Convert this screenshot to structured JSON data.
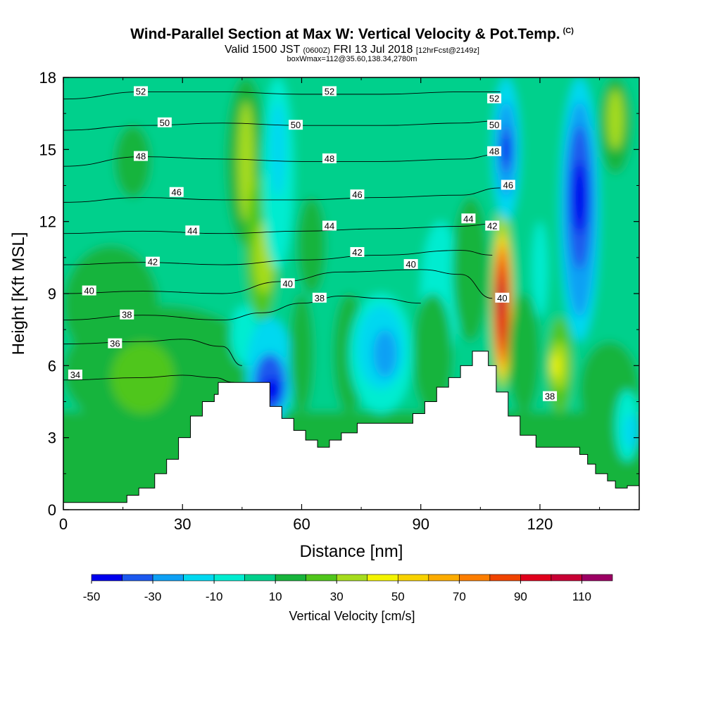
{
  "title": {
    "main": "Wind-Parallel Section at Max W: Vertical Velocity & Pot.Temp.",
    "copyright": "(C)",
    "valid_prefix": "Valid 1500 JST",
    "valid_utc": "(0600Z)",
    "valid_date": "FRI 13 Jul 2018",
    "forecast": "[12hrFcst@2149z]",
    "box": "boxWmax=112@35.60,138.34,2780m"
  },
  "colors": {
    "-50": "#0000ee",
    "-40": "#1c58ee",
    "-30": "#0ea0f4",
    "-20": "#00d8f0",
    "-10": "#00ecd0",
    "0": "#00d08c",
    "10": "#18b43c",
    "20": "#50c61c",
    "30": "#a6dc1e",
    "40": "#f4f400",
    "50": "#f8d200",
    "60": "#fcac00",
    "70": "#fc7e00",
    "80": "#f04400",
    "90": "#e0001c",
    "100": "#c80034",
    "110": "#9c0064",
    "120": "#64107c"
  },
  "chart_data": {
    "type": "heatmap",
    "xlabel": "Distance [nm]",
    "ylabel": "Height [Kft MSL]",
    "xlim": [
      0,
      145
    ],
    "ylim": [
      0,
      18
    ],
    "xticks": [
      0,
      30,
      60,
      90,
      120
    ],
    "yticks": [
      0,
      3,
      6,
      9,
      12,
      15,
      18
    ],
    "colorbar": {
      "title": "Vertical Velocity [cm/s]",
      "bounds": [
        -50,
        -40,
        -30,
        -20,
        -10,
        0,
        10,
        20,
        30,
        40,
        50,
        60,
        70,
        80,
        90,
        100,
        110,
        120
      ],
      "tick_values": [
        -50,
        -30,
        -10,
        10,
        30,
        50,
        70,
        90,
        110
      ],
      "tick_labels": [
        "-50",
        "-30",
        "-10",
        "10",
        "30",
        "50",
        "70",
        "90",
        "110"
      ]
    },
    "terrain": {
      "x": [
        0,
        16,
        16,
        19,
        19,
        23,
        23,
        26,
        26,
        29,
        29,
        32,
        32,
        35,
        35,
        38,
        38,
        39,
        39,
        42,
        42,
        52,
        52,
        55,
        55,
        58,
        58,
        61,
        61,
        64,
        64,
        67,
        67,
        70,
        70,
        74,
        74,
        78,
        78,
        88,
        88,
        91,
        91,
        94,
        94,
        97,
        97,
        100,
        100,
        103,
        103,
        107,
        107,
        109,
        109,
        112,
        112,
        115,
        115,
        119,
        119,
        130,
        130,
        132,
        132,
        134,
        134,
        137,
        137,
        139,
        139,
        142,
        142,
        145
      ],
      "h": [
        0.3,
        0.3,
        0.6,
        0.6,
        0.9,
        0.9,
        1.5,
        1.5,
        2.1,
        2.1,
        3.0,
        3.0,
        3.9,
        3.9,
        4.5,
        4.5,
        4.8,
        4.8,
        5.3,
        5.3,
        5.3,
        5.3,
        4.3,
        4.3,
        3.8,
        3.8,
        3.3,
        3.3,
        2.9,
        2.9,
        2.6,
        2.6,
        2.9,
        2.9,
        3.2,
        3.2,
        3.6,
        3.6,
        3.6,
        3.6,
        4.0,
        4.0,
        4.5,
        4.5,
        5.1,
        5.1,
        5.5,
        5.5,
        6.0,
        6.0,
        6.6,
        6.6,
        6.0,
        6.0,
        4.9,
        4.9,
        3.9,
        3.9,
        3.1,
        3.1,
        2.6,
        2.6,
        2.3,
        2.3,
        1.9,
        1.9,
        1.5,
        1.5,
        1.2,
        1.2,
        0.9,
        0.9,
        1.0,
        1.0
      ]
    },
    "cells": [
      {
        "x": [
          0,
          145
        ],
        "y": [
          0,
          18
        ],
        "w": 0
      },
      {
        "x": [
          0,
          145
        ],
        "y": [
          0,
          3.5
        ],
        "w": 10
      },
      {
        "x": [
          0,
          50
        ],
        "y": [
          3,
          8.5
        ],
        "w": 10
      },
      {
        "x": [
          0,
          24
        ],
        "y": [
          6,
          11
        ],
        "w": 10
      },
      {
        "x": [
          13,
          22
        ],
        "y": [
          13,
          16
        ],
        "w": 10
      },
      {
        "x": [
          12,
          28
        ],
        "y": [
          4,
          7
        ],
        "w": 20
      },
      {
        "x": [
          38,
          52
        ],
        "y": [
          5,
          7
        ],
        "w": 10
      },
      {
        "x": [
          42,
          49
        ],
        "y": [
          6,
          8.5
        ],
        "w": -10
      },
      {
        "x": [
          46,
          58
        ],
        "y": [
          3.5,
          8
        ],
        "w": -20
      },
      {
        "x": [
          48,
          56
        ],
        "y": [
          4,
          6.5
        ],
        "w": -40
      },
      {
        "x": [
          50,
          55
        ],
        "y": [
          4.5,
          5.5
        ],
        "w": -50
      },
      {
        "x": [
          41,
          51
        ],
        "y": [
          11,
          18
        ],
        "w": 10
      },
      {
        "x": [
          44,
          48
        ],
        "y": [
          12,
          17
        ],
        "w": 30
      },
      {
        "x": [
          46,
          54
        ],
        "y": [
          8,
          14
        ],
        "w": 20
      },
      {
        "x": [
          48,
          53
        ],
        "y": [
          9,
          12
        ],
        "w": 30
      },
      {
        "x": [
          50,
          58
        ],
        "y": [
          10,
          18
        ],
        "w": -10
      },
      {
        "x": [
          52,
          56
        ],
        "y": [
          13,
          17
        ],
        "w": -20
      },
      {
        "x": [
          57,
          63
        ],
        "y": [
          4,
          9
        ],
        "w": 10
      },
      {
        "x": [
          59,
          66
        ],
        "y": [
          9,
          13
        ],
        "w": 10
      },
      {
        "x": [
          68,
          76
        ],
        "y": [
          4,
          9
        ],
        "w": 10
      },
      {
        "x": [
          72,
          88
        ],
        "y": [
          4,
          9
        ],
        "w": -10
      },
      {
        "x": [
          74,
          86
        ],
        "y": [
          5,
          8.5
        ],
        "w": -20
      },
      {
        "x": [
          78,
          84
        ],
        "y": [
          5.5,
          7.5
        ],
        "w": -30
      },
      {
        "x": [
          90,
          100
        ],
        "y": [
          6,
          12
        ],
        "w": -10
      },
      {
        "x": [
          88,
          98
        ],
        "y": [
          4,
          9
        ],
        "w": 10
      },
      {
        "x": [
          98,
          107
        ],
        "y": [
          7,
          13
        ],
        "w": 10
      },
      {
        "x": [
          108,
          113
        ],
        "y": [
          5,
          12.5
        ],
        "w": 30
      },
      {
        "x": [
          108,
          113
        ],
        "y": [
          5.5,
          11.5
        ],
        "w": 50
      },
      {
        "x": [
          108.5,
          112.5
        ],
        "y": [
          6,
          11
        ],
        "w": 70
      },
      {
        "x": [
          108.5,
          112
        ],
        "y": [
          6.5,
          10.5
        ],
        "w": 80
      },
      {
        "x": [
          109,
          111.5
        ],
        "y": [
          7,
          10
        ],
        "w": 90
      },
      {
        "x": [
          109,
          111
        ],
        "y": [
          8,
          9.5
        ],
        "w": 100
      },
      {
        "x": [
          108,
          115
        ],
        "y": [
          12,
          18
        ],
        "w": -20
      },
      {
        "x": [
          109,
          114
        ],
        "y": [
          13,
          17
        ],
        "w": -30
      },
      {
        "x": [
          110,
          113
        ],
        "y": [
          14,
          16
        ],
        "w": -40
      },
      {
        "x": [
          110.5,
          112.5
        ],
        "y": [
          14.5,
          15.5
        ],
        "w": -50
      },
      {
        "x": [
          112,
          120
        ],
        "y": [
          4,
          9
        ],
        "w": 10
      },
      {
        "x": [
          118,
          122
        ],
        "y": [
          8,
          12
        ],
        "w": -10
      },
      {
        "x": [
          122,
          128
        ],
        "y": [
          4,
          8
        ],
        "w": 20
      },
      {
        "x": [
          122.5,
          127
        ],
        "y": [
          5,
          7
        ],
        "w": 30
      },
      {
        "x": [
          123,
          125
        ],
        "y": [
          5.5,
          6.5
        ],
        "w": 40
      },
      {
        "x": [
          125,
          135
        ],
        "y": [
          7,
          18
        ],
        "w": -20
      },
      {
        "x": [
          126,
          134
        ],
        "y": [
          8,
          17
        ],
        "w": -30
      },
      {
        "x": [
          127,
          133
        ],
        "y": [
          10,
          16
        ],
        "w": -40
      },
      {
        "x": [
          128,
          132
        ],
        "y": [
          11.5,
          14.5
        ],
        "w": -50
      },
      {
        "x": [
          135,
          143
        ],
        "y": [
          14,
          18
        ],
        "w": 10
      },
      {
        "x": [
          137,
          141
        ],
        "y": [
          15,
          17.5
        ],
        "w": 30
      },
      {
        "x": [
          130,
          145
        ],
        "y": [
          3,
          7
        ],
        "w": 10
      },
      {
        "x": [
          139,
          145
        ],
        "y": [
          2,
          5
        ],
        "w": -10
      },
      {
        "x": [
          141,
          145
        ],
        "y": [
          2.5,
          4
        ],
        "w": -20
      }
    ],
    "isentropes": [
      {
        "value": 34,
        "x": [
          0,
          20,
          30,
          38,
          43
        ],
        "y": [
          5.4,
          5.5,
          5.6,
          5.5,
          5.3
        ]
      },
      {
        "value": 36,
        "x": [
          0,
          20,
          30,
          40,
          45
        ],
        "y": [
          6.9,
          7.0,
          7.1,
          6.8,
          6.0
        ]
      },
      {
        "value": 38,
        "x": [
          0,
          20,
          40,
          50,
          60,
          70,
          80,
          90
        ],
        "y": [
          7.9,
          8.1,
          7.9,
          8.2,
          8.6,
          8.9,
          8.8,
          8.6
        ]
      },
      {
        "value": 40,
        "x": [
          0,
          20,
          40,
          55,
          70,
          90,
          100,
          108
        ],
        "y": [
          9.0,
          9.1,
          9.0,
          9.5,
          9.9,
          10.0,
          9.8,
          8.8
        ]
      },
      {
        "value": 42,
        "x": [
          0,
          20,
          40,
          60,
          80,
          100,
          108
        ],
        "y": [
          10.2,
          10.3,
          10.2,
          10.4,
          10.6,
          10.8,
          10.6
        ]
      },
      {
        "value": 44,
        "x": [
          0,
          20,
          40,
          60,
          80,
          100,
          108
        ],
        "y": [
          11.5,
          11.6,
          11.5,
          11.6,
          11.7,
          11.8,
          11.9
        ]
      },
      {
        "value": 46,
        "x": [
          0,
          20,
          40,
          60,
          80,
          100,
          110
        ],
        "y": [
          12.8,
          13.0,
          12.9,
          12.9,
          13.0,
          13.1,
          13.4
        ]
      },
      {
        "value": 48,
        "x": [
          0,
          20,
          40,
          60,
          80,
          100,
          110
        ],
        "y": [
          14.3,
          14.7,
          14.6,
          14.5,
          14.5,
          14.6,
          14.8
        ]
      },
      {
        "value": 50,
        "x": [
          0,
          20,
          40,
          60,
          80,
          100,
          110
        ],
        "y": [
          15.8,
          16.0,
          16.1,
          16.0,
          16.0,
          16.1,
          16.2
        ]
      },
      {
        "value": 52,
        "x": [
          0,
          20,
          40,
          60,
          80,
          100,
          110
        ],
        "y": [
          17.1,
          17.4,
          17.4,
          17.3,
          17.3,
          17.4,
          17.4
        ]
      }
    ],
    "contour_labels": [
      {
        "text": "52",
        "x": 19.5,
        "y": 17.4
      },
      {
        "text": "50",
        "x": 25.5,
        "y": 16.1
      },
      {
        "text": "48",
        "x": 19.5,
        "y": 14.7
      },
      {
        "text": "46",
        "x": 28.5,
        "y": 13.2
      },
      {
        "text": "44",
        "x": 32.5,
        "y": 11.6
      },
      {
        "text": "42",
        "x": 22.5,
        "y": 10.3
      },
      {
        "text": "40",
        "x": 6.5,
        "y": 9.1
      },
      {
        "text": "38",
        "x": 16,
        "y": 8.1
      },
      {
        "text": "36",
        "x": 13,
        "y": 6.9
      },
      {
        "text": "34",
        "x": 3,
        "y": 5.6
      },
      {
        "text": "52",
        "x": 67,
        "y": 17.4
      },
      {
        "text": "50",
        "x": 58.5,
        "y": 16.0
      },
      {
        "text": "48",
        "x": 67,
        "y": 14.6
      },
      {
        "text": "46",
        "x": 74,
        "y": 13.1
      },
      {
        "text": "44",
        "x": 67,
        "y": 11.8
      },
      {
        "text": "42",
        "x": 74,
        "y": 10.7
      },
      {
        "text": "40",
        "x": 56.5,
        "y": 9.4
      },
      {
        "text": "38",
        "x": 64.5,
        "y": 8.8
      },
      {
        "text": "40",
        "x": 87.5,
        "y": 10.2
      },
      {
        "text": "44",
        "x": 102,
        "y": 12.1
      },
      {
        "text": "52",
        "x": 108.5,
        "y": 17.1
      },
      {
        "text": "50",
        "x": 108.5,
        "y": 16.0
      },
      {
        "text": "48",
        "x": 108.5,
        "y": 14.9
      },
      {
        "text": "46",
        "x": 112,
        "y": 13.5
      },
      {
        "text": "42",
        "x": 108,
        "y": 11.8
      },
      {
        "text": "40",
        "x": 110.5,
        "y": 8.8
      },
      {
        "text": "38",
        "x": 122.5,
        "y": 4.7
      }
    ]
  }
}
